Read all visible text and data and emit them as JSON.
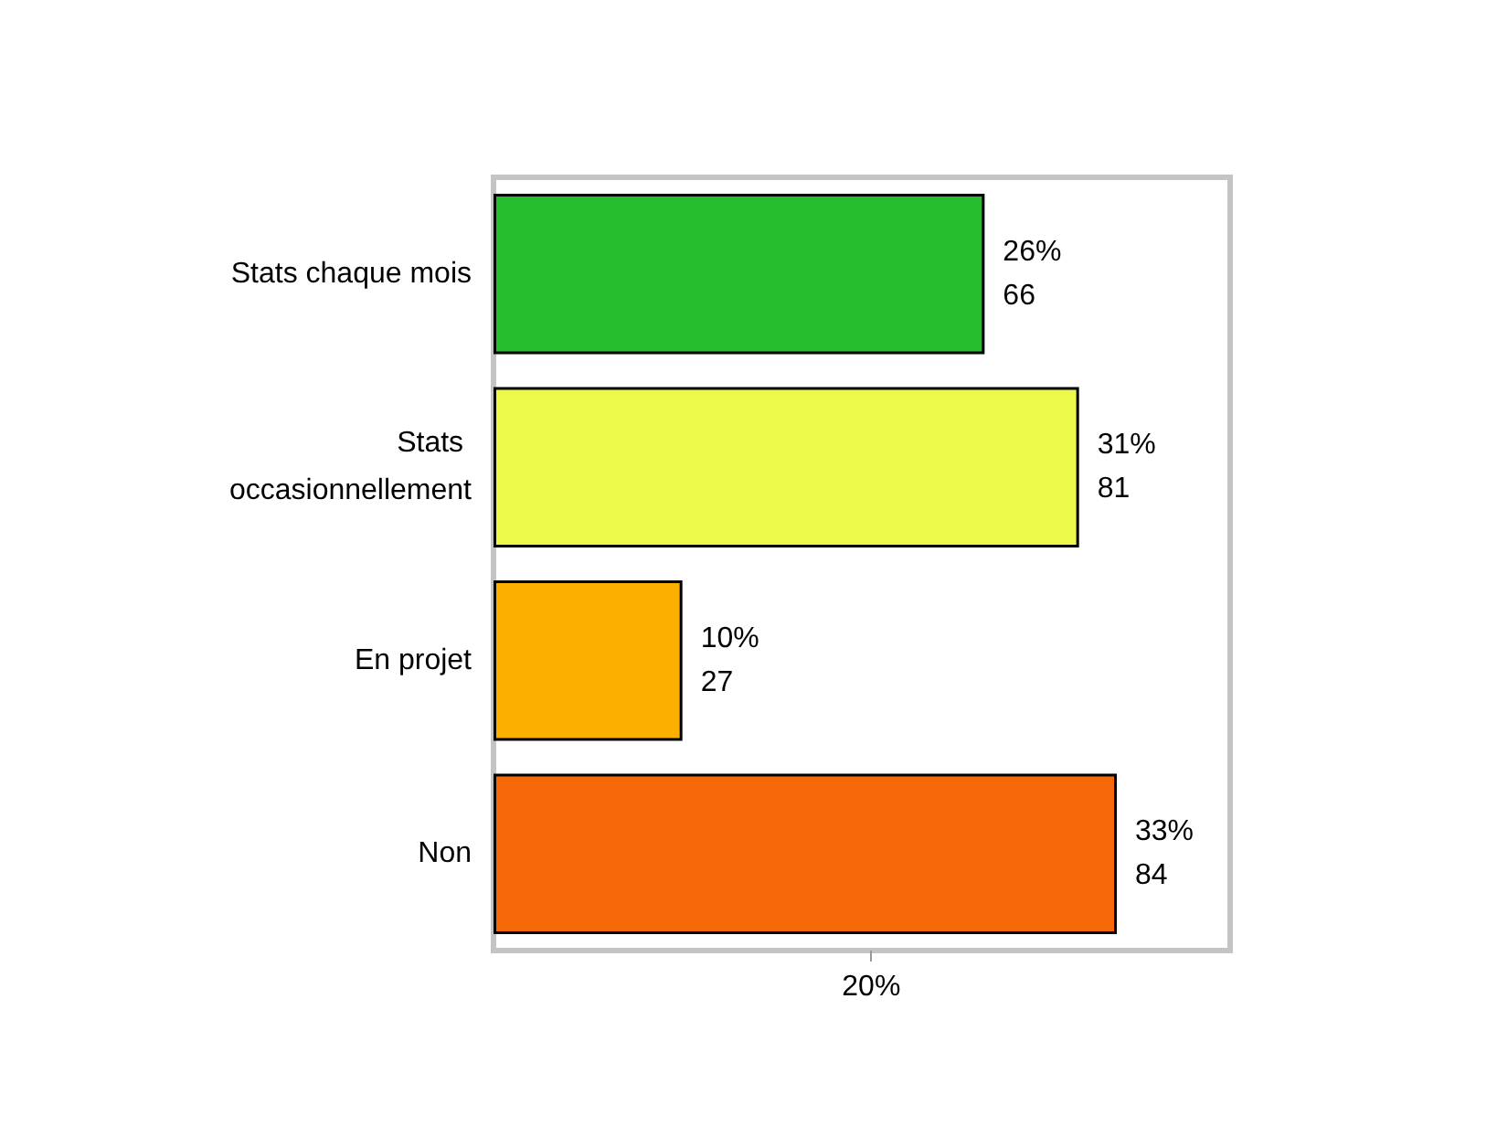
{
  "chart_data": {
    "type": "bar",
    "orientation": "horizontal",
    "categories": [
      "Stats chaque mois",
      "Stats occasionnellement",
      "En projet",
      "Non"
    ],
    "values": [
      26,
      31,
      10,
      33
    ],
    "colors": [
      "#26be2f",
      "#ecf84a",
      "#fbb000",
      "#f7680a"
    ],
    "value_labels": [
      "26%\n66",
      "31%\n81",
      "10%\n27",
      "33%\n84"
    ],
    "xlim": [
      0,
      39
    ],
    "xticks": [
      {
        "value": 20,
        "label": "20%"
      }
    ]
  }
}
